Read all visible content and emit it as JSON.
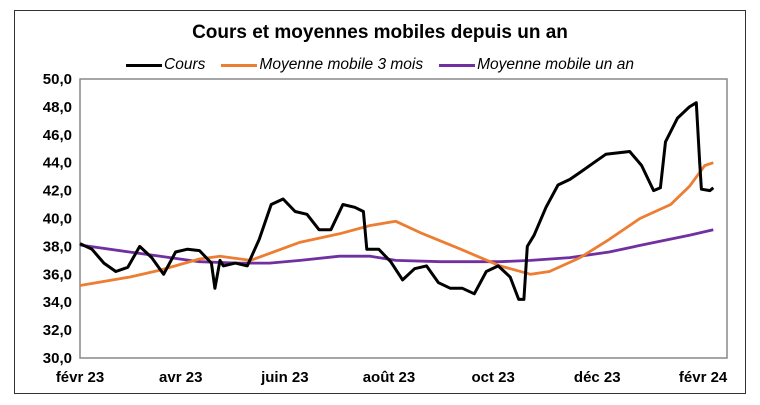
{
  "chart_data": {
    "type": "line",
    "title": "Cours et moyennes mobiles depuis un an",
    "xlabel": "",
    "ylabel": "",
    "ylim": [
      30,
      50
    ],
    "xlim": [
      "2023-02-01",
      "2024-02-15"
    ],
    "yticks": [
      "30,0",
      "32,0",
      "34,0",
      "36,0",
      "38,0",
      "40,0",
      "42,0",
      "44,0",
      "46,0",
      "48,0",
      "50,0"
    ],
    "xticks": [
      {
        "date": "2023-02-01",
        "label": "févr 23"
      },
      {
        "date": "2023-04-01",
        "label": "avr 23"
      },
      {
        "date": "2023-06-01",
        "label": "juin 23"
      },
      {
        "date": "2023-08-01",
        "label": "août 23"
      },
      {
        "date": "2023-10-01",
        "label": "oct 23"
      },
      {
        "date": "2023-12-01",
        "label": "déc 23"
      },
      {
        "date": "2024-02-01",
        "label": "févr 24"
      }
    ],
    "grid": false,
    "legend_position": "top",
    "series": [
      {
        "name": "Cours",
        "color": "#000000",
        "points": [
          [
            "2023-02-01",
            38.2
          ],
          [
            "2023-02-08",
            37.8
          ],
          [
            "2023-02-15",
            36.8
          ],
          [
            "2023-02-22",
            36.2
          ],
          [
            "2023-03-01",
            36.5
          ],
          [
            "2023-03-08",
            38.0
          ],
          [
            "2023-03-15",
            37.2
          ],
          [
            "2023-03-22",
            36.0
          ],
          [
            "2023-03-29",
            37.6
          ],
          [
            "2023-04-05",
            37.8
          ],
          [
            "2023-04-12",
            37.7
          ],
          [
            "2023-04-19",
            36.8
          ],
          [
            "2023-04-21",
            35.0
          ],
          [
            "2023-04-24",
            37.0
          ],
          [
            "2023-04-26",
            36.6
          ],
          [
            "2023-05-03",
            36.8
          ],
          [
            "2023-05-10",
            36.6
          ],
          [
            "2023-05-17",
            38.5
          ],
          [
            "2023-05-24",
            41.0
          ],
          [
            "2023-05-31",
            41.4
          ],
          [
            "2023-06-07",
            40.5
          ],
          [
            "2023-06-14",
            40.3
          ],
          [
            "2023-06-21",
            39.2
          ],
          [
            "2023-06-28",
            39.2
          ],
          [
            "2023-07-05",
            41.0
          ],
          [
            "2023-07-12",
            40.8
          ],
          [
            "2023-07-17",
            40.5
          ],
          [
            "2023-07-19",
            37.8
          ],
          [
            "2023-07-26",
            37.8
          ],
          [
            "2023-08-02",
            36.9
          ],
          [
            "2023-08-09",
            35.6
          ],
          [
            "2023-08-16",
            36.4
          ],
          [
            "2023-08-23",
            36.6
          ],
          [
            "2023-08-30",
            35.4
          ],
          [
            "2023-09-06",
            35.0
          ],
          [
            "2023-09-13",
            35.0
          ],
          [
            "2023-09-20",
            34.6
          ],
          [
            "2023-09-27",
            36.2
          ],
          [
            "2023-10-04",
            36.6
          ],
          [
            "2023-10-11",
            35.8
          ],
          [
            "2023-10-16",
            34.2
          ],
          [
            "2023-10-19",
            34.2
          ],
          [
            "2023-10-21",
            38.0
          ],
          [
            "2023-10-25",
            38.8
          ],
          [
            "2023-11-01",
            40.8
          ],
          [
            "2023-11-08",
            42.4
          ],
          [
            "2023-11-15",
            42.8
          ],
          [
            "2023-11-22",
            43.4
          ],
          [
            "2023-11-29",
            44.0
          ],
          [
            "2023-12-06",
            44.6
          ],
          [
            "2023-12-13",
            44.7
          ],
          [
            "2023-12-20",
            44.8
          ],
          [
            "2023-12-27",
            43.8
          ],
          [
            "2024-01-03",
            42.0
          ],
          [
            "2024-01-07",
            42.2
          ],
          [
            "2024-01-10",
            45.5
          ],
          [
            "2024-01-17",
            47.2
          ],
          [
            "2024-01-24",
            48.0
          ],
          [
            "2024-01-28",
            48.3
          ],
          [
            "2024-01-30",
            44.0
          ],
          [
            "2024-01-31",
            42.1
          ],
          [
            "2024-02-05",
            42.0
          ],
          [
            "2024-02-07",
            42.2
          ]
        ]
      },
      {
        "name": "Moyenne mobile 3 mois",
        "color": "#ED7D31",
        "points": [
          [
            "2023-02-01",
            35.2
          ],
          [
            "2023-03-02",
            35.8
          ],
          [
            "2023-03-20",
            36.3
          ],
          [
            "2023-04-12",
            37.1
          ],
          [
            "2023-04-24",
            37.3
          ],
          [
            "2023-05-12",
            37.0
          ],
          [
            "2023-05-23",
            37.5
          ],
          [
            "2023-06-10",
            38.3
          ],
          [
            "2023-07-03",
            38.9
          ],
          [
            "2023-07-21",
            39.5
          ],
          [
            "2023-08-05",
            39.8
          ],
          [
            "2023-08-19",
            39.0
          ],
          [
            "2023-09-12",
            37.8
          ],
          [
            "2023-10-05",
            36.6
          ],
          [
            "2023-10-23",
            36.0
          ],
          [
            "2023-11-03",
            36.2
          ],
          [
            "2023-11-21",
            37.2
          ],
          [
            "2023-12-08",
            38.5
          ],
          [
            "2023-12-26",
            40.0
          ],
          [
            "2024-01-13",
            41.0
          ],
          [
            "2024-01-24",
            42.3
          ],
          [
            "2024-02-02",
            43.8
          ],
          [
            "2024-02-07",
            44.0
          ]
        ]
      },
      {
        "name": "Moyenne mobile un an",
        "color": "#7030A0",
        "points": [
          [
            "2023-02-01",
            38.1
          ],
          [
            "2023-03-02",
            37.6
          ],
          [
            "2023-03-20",
            37.3
          ],
          [
            "2023-04-12",
            36.9
          ],
          [
            "2023-05-05",
            36.8
          ],
          [
            "2023-05-23",
            36.8
          ],
          [
            "2023-06-10",
            37.0
          ],
          [
            "2023-07-03",
            37.3
          ],
          [
            "2023-07-21",
            37.3
          ],
          [
            "2023-08-05",
            37.0
          ],
          [
            "2023-08-31",
            36.9
          ],
          [
            "2023-10-05",
            36.9
          ],
          [
            "2023-10-23",
            37.0
          ],
          [
            "2023-11-15",
            37.2
          ],
          [
            "2023-12-08",
            37.6
          ],
          [
            "2023-12-31",
            38.2
          ],
          [
            "2024-01-24",
            38.8
          ],
          [
            "2024-02-07",
            39.2
          ]
        ]
      }
    ]
  }
}
